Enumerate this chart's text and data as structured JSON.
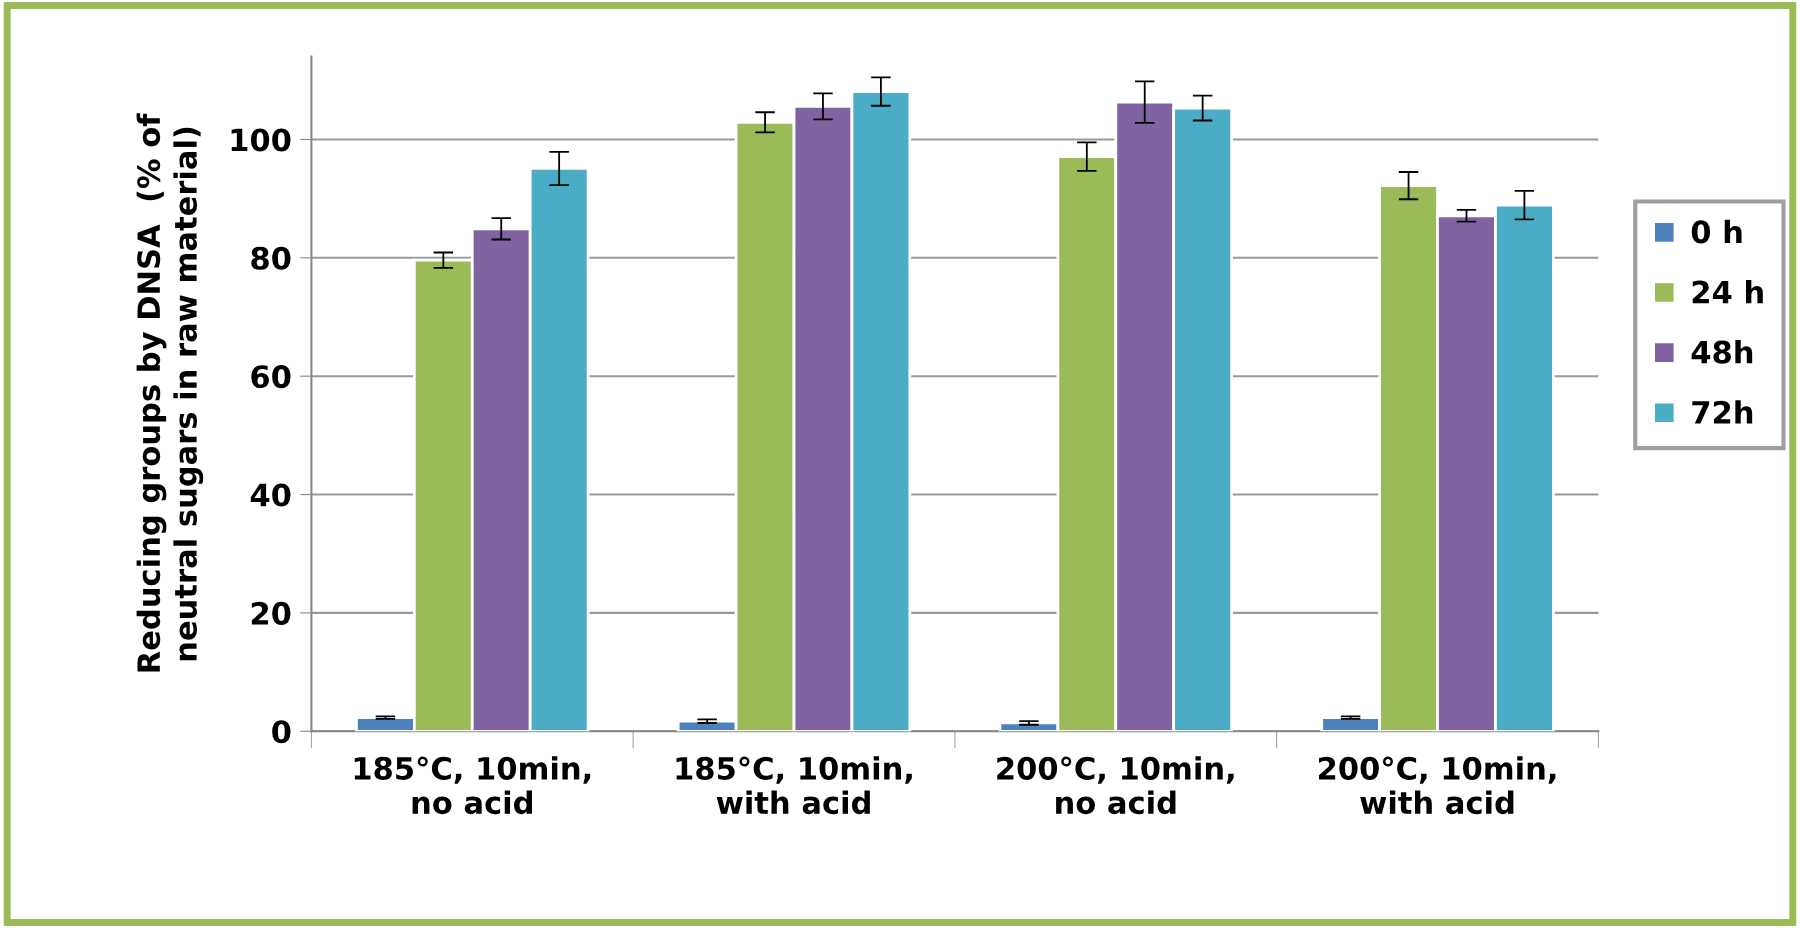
{
  "chart_data": {
    "type": "bar",
    "ylabel": "Reducing groups by DNSA  (% of\nneutral sugars in raw material)",
    "categories": [
      "185°C, 10min,\nno acid",
      "185°C, 10min,\nwith acid",
      "200°C, 10min,\nno acid",
      "200°C, 10min,\nwith acid"
    ],
    "series": [
      {
        "name": "0 h",
        "color": "#4f81bd",
        "values": [
          2.3,
          1.7,
          1.4,
          2.3
        ],
        "errors": [
          0.2,
          0.3,
          0.3,
          0.2
        ]
      },
      {
        "name": "24 h",
        "color": "#9bbb59",
        "values": [
          79.6,
          102.9,
          97.1,
          92.2
        ],
        "errors": [
          1.3,
          1.7,
          2.4,
          2.3
        ]
      },
      {
        "name": "48h",
        "color": "#8064a2",
        "values": [
          84.9,
          105.6,
          106.3,
          87.1
        ],
        "errors": [
          1.8,
          2.2,
          3.5,
          1.0
        ]
      },
      {
        "name": "72h",
        "color": "#4bacc6",
        "values": [
          95.1,
          108.1,
          105.3,
          88.9
        ],
        "errors": [
          2.8,
          2.4,
          2.1,
          2.4
        ]
      }
    ],
    "ylim": [
      0,
      114
    ],
    "yticks": [
      0,
      20,
      40,
      60,
      80,
      100
    ],
    "grid": "y",
    "legend": "right"
  }
}
